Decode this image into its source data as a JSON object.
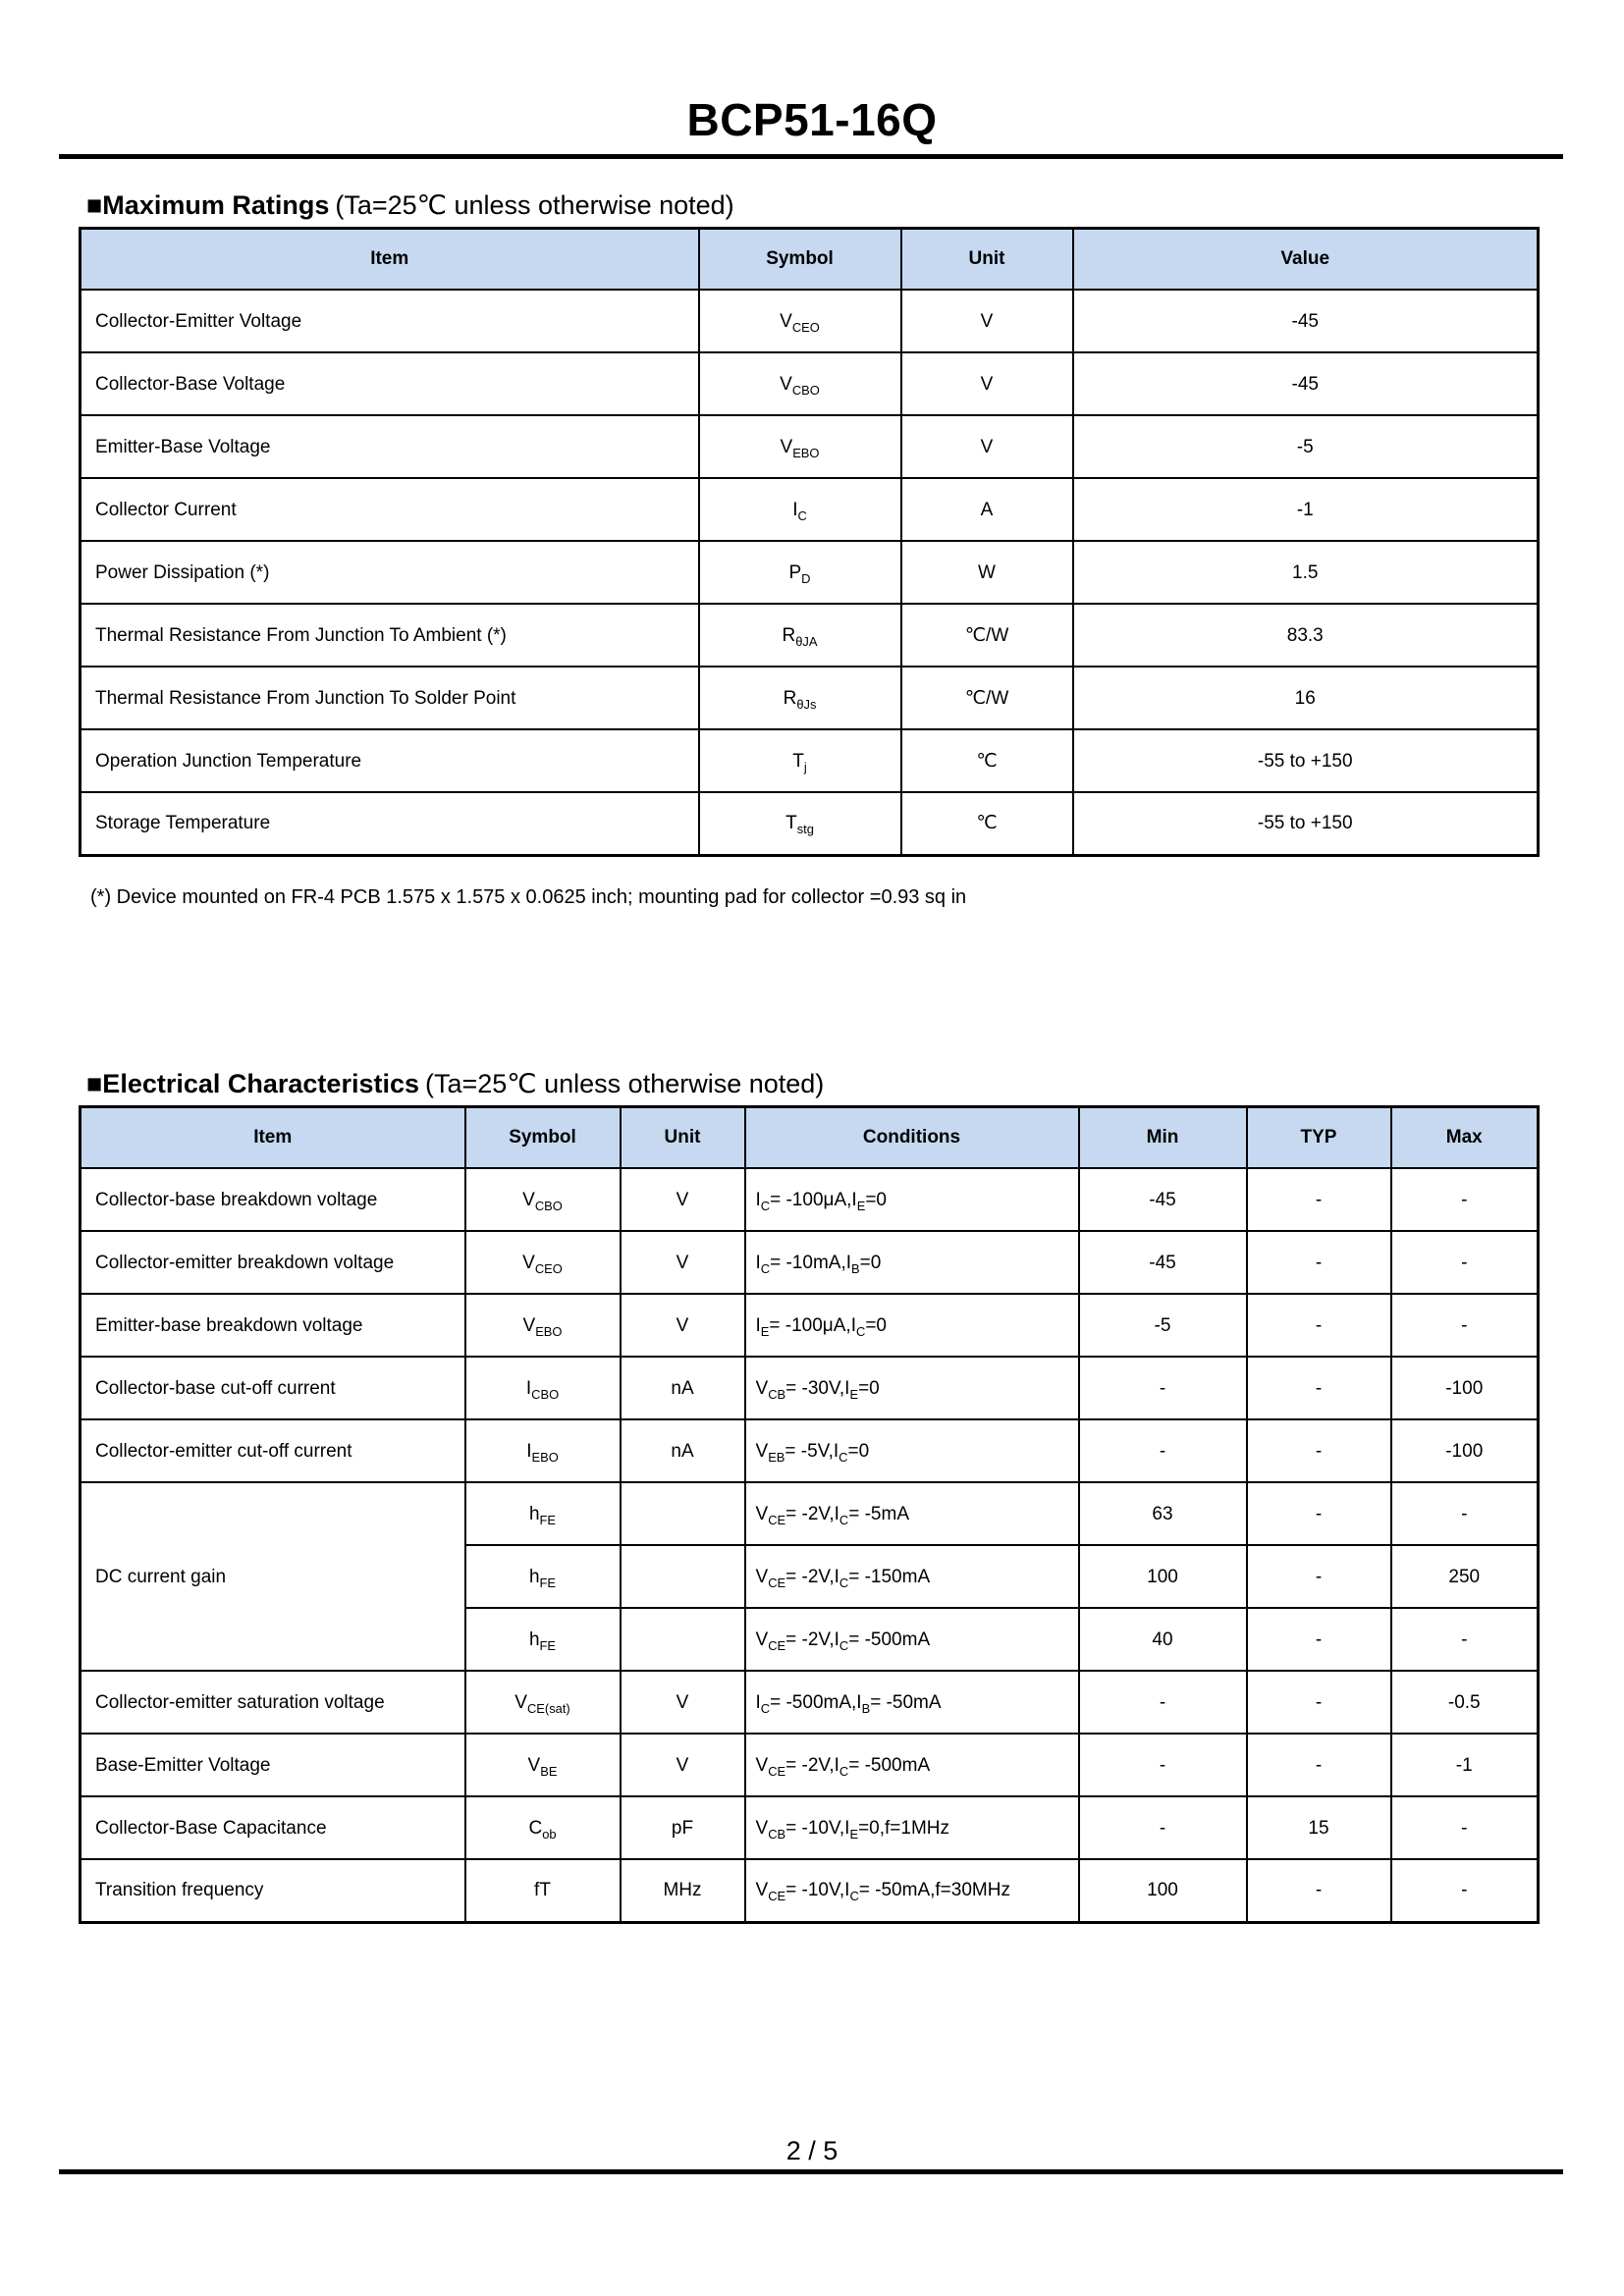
{
  "title": "BCP51-16Q",
  "colors": {
    "table_header_bg": "#c6d9f1",
    "border": "#000000"
  },
  "max_ratings": {
    "heading": "■Maximum Ratings",
    "heading_note": "(Ta=25℃ unless otherwise noted)",
    "columns": [
      "Item",
      "Symbol",
      "Unit",
      "Value"
    ],
    "rows": [
      {
        "item": "Collector-Emitter Voltage",
        "symbol": "V~CEO~",
        "unit": "V",
        "value": "-45"
      },
      {
        "item": "Collector-Base Voltage",
        "symbol": "V~CBO~",
        "unit": "V",
        "value": "-45"
      },
      {
        "item": "Emitter-Base Voltage",
        "symbol": "V~EBO~",
        "unit": "V",
        "value": "-5"
      },
      {
        "item": "Collector Current",
        "symbol": "I~C~",
        "unit": "A",
        "value": "-1"
      },
      {
        "item": "Power Dissipation (*)",
        "symbol": "P~D~",
        "unit": "W",
        "value": "1.5"
      },
      {
        "item": "Thermal Resistance From Junction To Ambient (*)",
        "symbol": "R~θJA~",
        "unit": "℃/W",
        "value": "83.3"
      },
      {
        "item": "Thermal Resistance From Junction To Solder Point",
        "symbol": "R~θJs~",
        "unit": "℃/W",
        "value": "16"
      },
      {
        "item": "Operation Junction Temperature",
        "symbol": "T~j~",
        "unit": "℃",
        "value": "-55 to +150"
      },
      {
        "item": "Storage Temperature",
        "symbol": "T~stg~",
        "unit": "℃",
        "value": "-55 to +150"
      }
    ],
    "footnote": "(*) Device mounted on FR-4 PCB 1.575 x 1.575 x 0.0625 inch; mounting pad for collector =0.93 sq in"
  },
  "electrical": {
    "heading": "■Electrical Characteristics",
    "heading_note": "(Ta=25℃ unless otherwise noted)",
    "columns": [
      "Item",
      "Symbol",
      "Unit",
      "Conditions",
      "Min",
      "TYP",
      "Max"
    ],
    "rows": [
      {
        "item": "Collector-base breakdown voltage",
        "symbol": "V~CBO~",
        "unit": "V",
        "conditions": "I~C~= -100μA,I~E~=0",
        "min": "-45",
        "typ": "-",
        "max": "-"
      },
      {
        "item": "Collector-emitter breakdown voltage",
        "symbol": "V~CEO~",
        "unit": "V",
        "conditions": "I~C~= -10mA,I~B~=0",
        "min": "-45",
        "typ": "-",
        "max": "-"
      },
      {
        "item": "Emitter-base breakdown voltage",
        "symbol": "V~EBO~",
        "unit": "V",
        "conditions": "I~E~= -100μA,I~C~=0",
        "min": "-5",
        "typ": "-",
        "max": "-"
      },
      {
        "item": "Collector-base cut-off current",
        "symbol": "I~CBO~",
        "unit": "nA",
        "conditions": "V~CB~= -30V,I~E~=0",
        "min": "-",
        "typ": "-",
        "max": "-100"
      },
      {
        "item": "Collector-emitter cut-off current",
        "symbol": "I~EBO~",
        "unit": "nA",
        "conditions": "V~EB~= -5V,I~C~=0",
        "min": "-",
        "typ": "-",
        "max": "-100"
      },
      {
        "item": "DC current gain",
        "item_rowspan": 3,
        "symbol": "h~FE~",
        "unit": "",
        "conditions": "V~CE~= -2V,I~C~= -5mA",
        "min": "63",
        "typ": "-",
        "max": "-"
      },
      {
        "item": null,
        "symbol": "h~FE~",
        "unit": "",
        "conditions": "V~CE~= -2V,I~C~= -150mA",
        "min": "100",
        "typ": "-",
        "max": "250"
      },
      {
        "item": null,
        "symbol": "h~FE~",
        "unit": "",
        "conditions": "V~CE~= -2V,I~C~= -500mA",
        "min": "40",
        "typ": "-",
        "max": "-"
      },
      {
        "item": "Collector-emitter saturation voltage",
        "symbol": "V~CE(sat)~",
        "unit": "V",
        "conditions": "I~C~= -500mA,I~B~= -50mA",
        "min": "-",
        "typ": "-",
        "max": "-0.5"
      },
      {
        "item": "Base-Emitter Voltage",
        "symbol": "V~BE~",
        "unit": "V",
        "conditions": "V~CE~= -2V,I~C~= -500mA",
        "min": "-",
        "typ": "-",
        "max": "-1"
      },
      {
        "item": "Collector-Base Capacitance",
        "symbol": "C~ob~",
        "unit": "pF",
        "conditions": "V~CB~= -10V,I~E~=0,f=1MHz",
        "min": "-",
        "typ": "15",
        "max": "-"
      },
      {
        "item": "Transition frequency",
        "symbol": "fT",
        "unit": "MHz",
        "conditions": "V~CE~= -10V,I~C~= -50mA,f=30MHz",
        "min": "100",
        "typ": "-",
        "max": "-"
      }
    ]
  },
  "footer": {
    "page_indicator": "2 / 5"
  }
}
